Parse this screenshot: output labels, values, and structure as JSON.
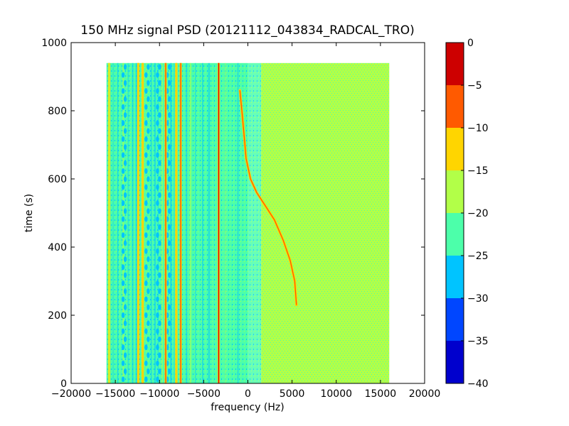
{
  "chart_data": {
    "type": "heatmap",
    "title": "150 MHz signal PSD (20121112_043834_RADCAL_TRO)",
    "xlabel": "frequency (Hz)",
    "ylabel": "time (s)",
    "xlim": [
      -20000,
      20000
    ],
    "ylim": [
      0,
      1000
    ],
    "xticks": [
      -20000,
      -15000,
      -10000,
      -5000,
      0,
      5000,
      10000,
      15000,
      20000
    ],
    "xtick_labels": [
      "−20000",
      "−15000",
      "−10000",
      "−5000",
      "0",
      "5000",
      "10000",
      "15000",
      "20000"
    ],
    "yticks": [
      0,
      200,
      400,
      600,
      800,
      1000
    ],
    "ytick_labels": [
      "0",
      "200",
      "400",
      "600",
      "800",
      "1000"
    ],
    "data_extent": {
      "x": [
        -16000,
        16000
      ],
      "y": [
        0,
        940
      ]
    },
    "colorbar": {
      "levels": [
        -40,
        -35,
        -30,
        -25,
        -20,
        -15,
        -10,
        -5,
        0
      ],
      "tick_labels": [
        "−40",
        "−35",
        "−30",
        "−25",
        "−20",
        "−15",
        "−10",
        "−5",
        "0"
      ],
      "colors": [
        "#0000cd",
        "#0046ff",
        "#00c4ff",
        "#4cffaa",
        "#b2ff48",
        "#ffd500",
        "#ff5a00",
        "#cd0000"
      ]
    },
    "regions": [
      {
        "x": [
          -16000,
          0
        ],
        "y": [
          0,
          940
        ],
        "level": "-25 to -20"
      },
      {
        "x": [
          1500,
          16000
        ],
        "y": [
          0,
          940
        ],
        "level": "-20 to -15"
      }
    ],
    "carrier_lines": [
      {
        "x": -3300,
        "y": [
          0,
          940
        ],
        "level": "-5 to 0"
      },
      {
        "x": -7600,
        "y": [
          0,
          940
        ],
        "level": "-10 to -5"
      },
      {
        "x": -8100,
        "y": [
          0,
          940
        ],
        "level": "-15 to -10"
      },
      {
        "x": -9300,
        "y": [
          0,
          940
        ],
        "level": "-10 to -5"
      },
      {
        "x": -11900,
        "y": [
          0,
          940
        ],
        "level": "-15 to -10"
      },
      {
        "x": -12400,
        "y": [
          0,
          940
        ],
        "level": "-15 to -10"
      },
      {
        "x": -15700,
        "y": [
          0,
          940
        ],
        "level": "-20 to -15"
      }
    ],
    "drifting_signal": {
      "level": "-10 to -5",
      "points": [
        [
          -900,
          860
        ],
        [
          -600,
          780
        ],
        [
          -200,
          660
        ],
        [
          300,
          600
        ],
        [
          1000,
          560
        ],
        [
          2000,
          520
        ],
        [
          3000,
          480
        ],
        [
          4000,
          420
        ],
        [
          4800,
          360
        ],
        [
          5300,
          300
        ],
        [
          5500,
          230
        ]
      ]
    }
  }
}
